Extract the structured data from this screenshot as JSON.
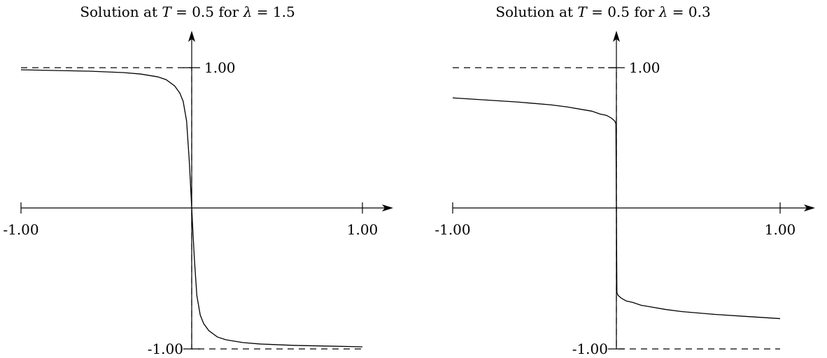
{
  "chart_data": [
    {
      "type": "line",
      "title_parts": [
        "Solution at ",
        "T",
        " = 0.5 for ",
        "λ",
        " = 1.5"
      ],
      "T": 0.5,
      "lambda": 1.5,
      "xlim": [
        -1.0,
        1.0
      ],
      "ylim": [
        -1.0,
        1.0
      ],
      "x_tick_labels": [
        "-1.00",
        "1.00"
      ],
      "y_tick_labels": [
        "1.00",
        "-1.00"
      ],
      "grid": false,
      "reference_lines": [
        {
          "style": "dashed",
          "kind": "step",
          "left_value": 1.0,
          "right_value": -1.0,
          "jump_at": 0.0
        }
      ],
      "series": [
        {
          "style": "solid",
          "x": [
            -1.0,
            -0.8,
            -0.6,
            -0.4,
            -0.3,
            -0.2,
            -0.15,
            -0.1,
            -0.07,
            -0.05,
            -0.03,
            -0.015,
            -0.005,
            0.0,
            0.005,
            0.015,
            0.03,
            0.05,
            0.07,
            0.1,
            0.15,
            0.2,
            0.3,
            0.4,
            0.6,
            0.8,
            1.0
          ],
          "y": [
            0.985,
            0.98,
            0.975,
            0.965,
            0.955,
            0.935,
            0.915,
            0.87,
            0.82,
            0.76,
            0.62,
            0.35,
            0.12,
            0.0,
            -0.12,
            -0.35,
            -0.62,
            -0.76,
            -0.82,
            -0.87,
            -0.915,
            -0.935,
            -0.955,
            -0.965,
            -0.975,
            -0.98,
            -0.985
          ]
        }
      ]
    },
    {
      "type": "line",
      "title_parts": [
        "Solution at ",
        "T",
        " = 0.5 for ",
        "λ",
        " = 0.3"
      ],
      "T": 0.5,
      "lambda": 0.3,
      "xlim": [
        -1.0,
        1.0
      ],
      "ylim": [
        -1.0,
        1.0
      ],
      "x_tick_labels": [
        "-1.00",
        "1.00"
      ],
      "y_tick_labels": [
        "1.00",
        "-1.00"
      ],
      "grid": false,
      "reference_lines": [
        {
          "style": "dashed",
          "kind": "step",
          "left_value": 1.0,
          "right_value": -1.0,
          "jump_at": 0.0
        }
      ],
      "series": [
        {
          "style": "solid",
          "x": [
            -1.0,
            -0.8,
            -0.6,
            -0.4,
            -0.3,
            -0.2,
            -0.15,
            -0.1,
            -0.06,
            -0.03,
            -0.01,
            -0.003,
            0.0,
            0.003,
            0.01,
            0.03,
            0.06,
            0.1,
            0.15,
            0.2,
            0.3,
            0.4,
            0.6,
            0.8,
            1.0
          ],
          "y": [
            0.785,
            0.77,
            0.755,
            0.735,
            0.72,
            0.7,
            0.69,
            0.67,
            0.66,
            0.64,
            0.62,
            0.6,
            0.0,
            -0.6,
            -0.62,
            -0.64,
            -0.66,
            -0.67,
            -0.69,
            -0.7,
            -0.72,
            -0.735,
            -0.755,
            -0.77,
            -0.785
          ]
        }
      ]
    }
  ]
}
